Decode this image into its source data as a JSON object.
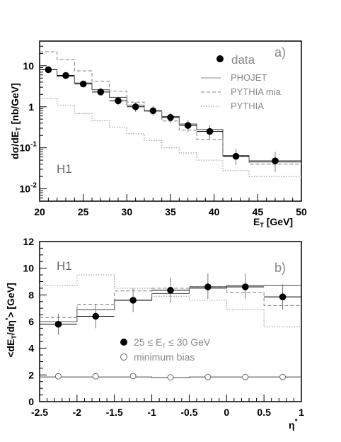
{
  "chart_data": [
    {
      "type": "line",
      "panel_label": "a)",
      "experiment_label": "H1",
      "ylabel": "dσ/dE_T [nb/GeV]",
      "xlabel": "E_T [GeV]",
      "xlim": [
        20,
        50
      ],
      "ylim": [
        0.005,
        40
      ],
      "yscale": "log",
      "xticks": [
        "20",
        "25",
        "30",
        "35",
        "40",
        "45",
        "50"
      ],
      "yticks": [
        {
          "base": "10",
          "exp": "-2",
          "value": 0.01
        },
        {
          "base": "10",
          "exp": "-1",
          "value": 0.1
        },
        {
          "base": "1",
          "exp": "",
          "value": 1
        },
        {
          "base": "10",
          "exp": "",
          "value": 10
        }
      ],
      "legend": {
        "data": "data",
        "phojet": "PHOJET",
        "pythia_mia": "PYTHIA mia",
        "pythia": "PYTHIA"
      },
      "bin_edges": [
        20,
        22,
        24,
        26,
        28,
        30,
        32,
        34,
        36,
        38,
        41,
        44,
        50
      ],
      "series": [
        {
          "name": "data",
          "style": "points",
          "x": [
            21,
            23,
            25,
            27,
            29,
            31,
            33,
            35,
            37,
            39.5,
            42.5,
            47
          ],
          "y": [
            8.0,
            5.8,
            3.6,
            2.3,
            1.4,
            1.0,
            0.8,
            0.55,
            0.35,
            0.25,
            0.062,
            0.048
          ],
          "err_lo": [
            6.8,
            4.9,
            3.0,
            1.9,
            1.1,
            0.75,
            0.6,
            0.4,
            0.24,
            0.16,
            0.038,
            0.026
          ],
          "err_hi": [
            9.4,
            6.8,
            4.3,
            2.8,
            1.75,
            1.3,
            1.05,
            0.72,
            0.48,
            0.36,
            0.095,
            0.08
          ]
        },
        {
          "name": "PHOJET",
          "style": "solid",
          "values": [
            8.0,
            5.5,
            3.8,
            2.6,
            1.7,
            1.1,
            0.78,
            0.58,
            0.38,
            0.28,
            0.065,
            0.045
          ]
        },
        {
          "name": "PYTHIA mia",
          "style": "dashed",
          "values": [
            22,
            14,
            7.5,
            4.2,
            2.4,
            1.3,
            0.78,
            0.45,
            0.27,
            0.16,
            0.062,
            0.04
          ]
        },
        {
          "name": "PYTHIA",
          "style": "dotted",
          "values": [
            1.6,
            1.1,
            0.68,
            0.46,
            0.31,
            0.22,
            0.15,
            0.1,
            0.075,
            0.05,
            0.028,
            0.02
          ]
        }
      ]
    },
    {
      "type": "line",
      "panel_label": "b)",
      "experiment_label": "H1",
      "ylabel": "<dE_T/dη*> [GeV]",
      "xlabel": "η*",
      "xlim": [
        -2.5,
        1
      ],
      "ylim": [
        0,
        12
      ],
      "xticks": [
        "-2.5",
        "-2",
        "-1.5",
        "-1",
        "-0.5",
        "0",
        "0.5",
        "1"
      ],
      "yticks": [
        "0",
        "2",
        "4",
        "6",
        "8",
        "10",
        "12"
      ],
      "legend": {
        "data": "25 ≤ E_T ≤ 30 GeV",
        "min_bias": "minimum bias"
      },
      "bin_edges": [
        -2.5,
        -2,
        -1.5,
        -1,
        -0.5,
        0,
        0.5,
        1
      ],
      "series": [
        {
          "name": "25 ≤ E_T ≤ 30 GeV",
          "style": "points",
          "x": [
            -2.25,
            -1.75,
            -1.25,
            -0.75,
            -0.25,
            0.25,
            0.75
          ],
          "y": [
            5.8,
            6.4,
            7.6,
            8.35,
            8.6,
            8.6,
            7.85
          ],
          "err_lo": [
            5.0,
            5.5,
            6.7,
            7.4,
            7.7,
            7.7,
            6.9
          ],
          "err_hi": [
            6.6,
            7.3,
            8.5,
            9.3,
            9.6,
            9.6,
            8.8
          ]
        },
        {
          "name": "minimum bias",
          "style": "open-points",
          "x": [
            -2.25,
            -1.75,
            -1.25,
            -0.75,
            -0.25,
            0.25,
            0.75
          ],
          "y": [
            1.9,
            1.9,
            1.92,
            1.82,
            1.85,
            1.85,
            1.85
          ]
        },
        {
          "name": "PHOJET",
          "style": "solid",
          "values": [
            6.0,
            6.9,
            7.6,
            8.1,
            8.5,
            8.7,
            8.7
          ]
        },
        {
          "name": "PYTHIA mia",
          "style": "dashed",
          "values": [
            6.3,
            7.3,
            8.3,
            8.5,
            8.6,
            8.2,
            7.2
          ]
        },
        {
          "name": "PYTHIA",
          "style": "dotted",
          "values": [
            8.7,
            9.5,
            8.5,
            7.9,
            7.6,
            6.9,
            5.6
          ]
        },
        {
          "name": "minimum bias model",
          "style": "solid",
          "values": [
            1.85,
            1.85,
            1.85,
            1.8,
            1.85,
            1.85,
            1.85
          ]
        }
      ]
    }
  ]
}
